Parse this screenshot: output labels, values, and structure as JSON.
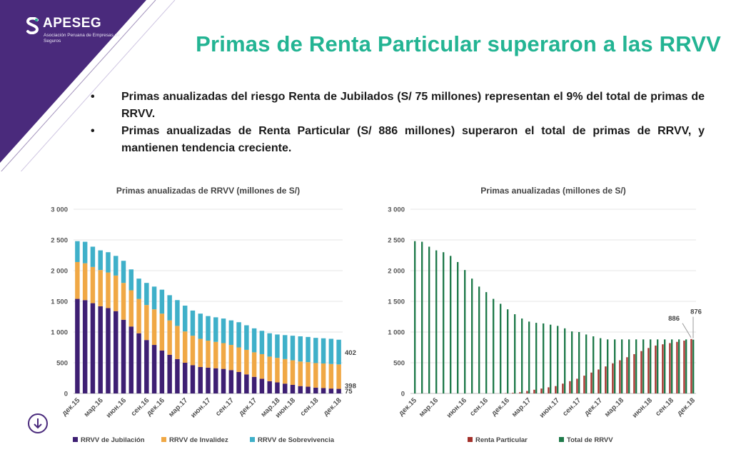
{
  "logo": {
    "name": "APESEG",
    "subtitle": "Asociación Peruana de Empresas de Seguros"
  },
  "title": "Primas de Renta Particular superaron a las RRVV",
  "bullets": [
    "Primas anualizadas del riesgo Renta de Jubilados (S/ 75 millones) representan el 9% del total de primas de RRVV.",
    "Primas anualizadas de Renta Particular (S/ 886 millones) superaron el  total de primas de RRVV, y mantienen tendencia creciente."
  ],
  "bullet_symbol": "•",
  "colors": {
    "accent": "#23b493",
    "brand": "#4a2a7c",
    "jubilacion": "#3e1f73",
    "invalidez": "#f0a845",
    "sobrevivencia": "#3fb0c9",
    "renta_particular": "#a3302a",
    "total_rrvv": "#1f7a4a"
  },
  "chart_data": [
    {
      "type": "bar",
      "stacked": true,
      "title": "Primas anualizadas de RRVV (millones de S/)",
      "x_tick_labels": [
        "дек.15",
        "мар.16",
        "июн.16",
        "сен.16",
        "дек.16",
        "мар.17",
        "июн.17",
        "сен.17",
        "дек.17",
        "мар.18",
        "июн.18",
        "сен.18",
        "дек.18"
      ],
      "y_ticks": [
        "0",
        "500",
        "1 000",
        "1 500",
        "2 000",
        "2 500",
        "3 000"
      ],
      "ylim": [
        0,
        3000
      ],
      "grid": true,
      "legend_position": "bottom",
      "series": [
        {
          "name": "RRVV de Jubilación",
          "values": [
            1540,
            1520,
            1470,
            1420,
            1390,
            1340,
            1200,
            1090,
            980,
            870,
            790,
            700,
            630,
            560,
            500,
            460,
            430,
            420,
            410,
            400,
            380,
            350,
            310,
            270,
            240,
            200,
            180,
            160,
            140,
            120,
            110,
            95,
            88,
            80,
            75
          ]
        },
        {
          "name": "RRVV de Invalidez",
          "values": [
            600,
            600,
            590,
            590,
            580,
            580,
            600,
            590,
            560,
            570,
            580,
            600,
            560,
            540,
            510,
            480,
            460,
            440,
            430,
            420,
            410,
            400,
            400,
            400,
            400,
            400,
            400,
            400,
            400,
            400,
            400,
            400,
            400,
            400,
            398
          ]
        },
        {
          "name": "RRVV de Sobrevivencia",
          "values": [
            340,
            350,
            330,
            320,
            330,
            320,
            360,
            340,
            330,
            360,
            370,
            390,
            410,
            420,
            420,
            410,
            410,
            400,
            400,
            400,
            400,
            410,
            400,
            390,
            380,
            380,
            380,
            390,
            400,
            410,
            410,
            410,
            410,
            410,
            402
          ]
        }
      ],
      "data_labels": [
        "402",
        "398",
        "75"
      ]
    },
    {
      "type": "bar",
      "title": "Primas anualizadas (millones de S/)",
      "x_tick_labels": [
        "дек.15",
        "мар.16",
        "июн.16",
        "сен.16",
        "дек.16",
        "мар.17",
        "июн.17",
        "сен.17",
        "дек.17",
        "мар.18",
        "июн.18",
        "сен.18",
        "дек.18"
      ],
      "y_ticks": [
        "0",
        "500",
        "1 000",
        "1 500",
        "2 000",
        "2 500",
        "3 000"
      ],
      "ylim": [
        0,
        3000
      ],
      "grid": true,
      "legend_position": "bottom",
      "series": [
        {
          "name": "Renta Particular",
          "values": [
            0,
            0,
            0,
            0,
            0,
            0,
            0,
            0,
            0,
            0,
            0,
            0,
            0,
            5,
            10,
            20,
            40,
            60,
            80,
            100,
            120,
            160,
            200,
            240,
            290,
            340,
            390,
            440,
            490,
            540,
            590,
            640,
            690,
            740,
            780,
            800,
            820,
            840,
            860,
            886
          ]
        },
        {
          "name": "Total de RRVV",
          "values": [
            2480,
            2470,
            2390,
            2330,
            2300,
            2240,
            2140,
            2010,
            1870,
            1740,
            1650,
            1540,
            1460,
            1370,
            1290,
            1220,
            1170,
            1150,
            1140,
            1120,
            1100,
            1060,
            1010,
            1000,
            960,
            930,
            900,
            880,
            880,
            880,
            880,
            880,
            880,
            880,
            880,
            880,
            880,
            880,
            880,
            876
          ]
        }
      ],
      "data_labels": [
        "886",
        "876"
      ]
    }
  ]
}
